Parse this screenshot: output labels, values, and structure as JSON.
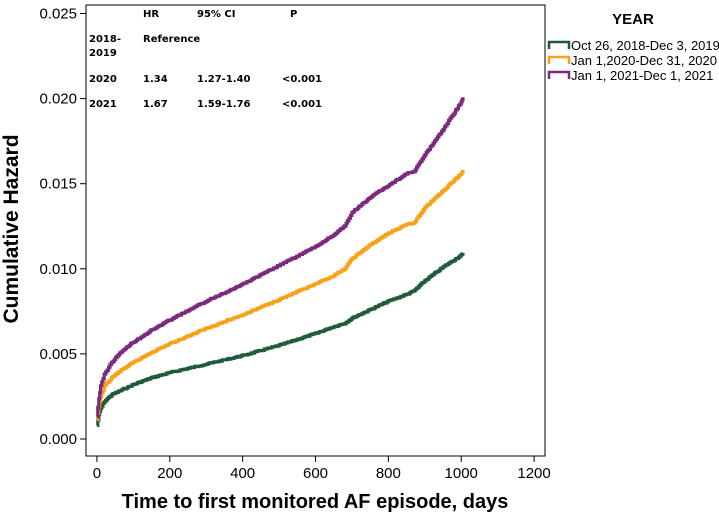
{
  "chart_data": {
    "type": "line",
    "xlabel": "Time to first monitored AF episode, days",
    "ylabel": "Cumulative Hazard",
    "xlim": [
      -30,
      1230
    ],
    "ylim": [
      -0.001,
      0.0255
    ],
    "x_ticks": [
      0,
      200,
      400,
      600,
      800,
      1000,
      1200
    ],
    "x_tick_labels": [
      "0",
      "200",
      "400",
      "600",
      "800",
      "1000",
      "1200"
    ],
    "y_ticks": [
      0.0,
      0.005,
      0.01,
      0.015,
      0.02,
      0.025
    ],
    "y_tick_labels": [
      "0.000",
      "0.005",
      "0.010",
      "0.015",
      "0.020",
      "0.025"
    ],
    "legend": {
      "title": "YEAR",
      "position": "top-right outside"
    },
    "series": [
      {
        "name": "Oct 26, 2018-Dec 3, 2019",
        "color": "#1f5a3a",
        "x": [
          0,
          5,
          10,
          20,
          40,
          70,
          100,
          150,
          200,
          300,
          400,
          500,
          600,
          650,
          680,
          700,
          750,
          800,
          850,
          870,
          900,
          950,
          1000,
          1005
        ],
        "y": [
          0.0008,
          0.0014,
          0.0018,
          0.0022,
          0.0026,
          0.0029,
          0.0032,
          0.0036,
          0.0039,
          0.0044,
          0.0049,
          0.0055,
          0.0062,
          0.0066,
          0.0068,
          0.0071,
          0.0076,
          0.0081,
          0.0085,
          0.0087,
          0.0093,
          0.0101,
          0.0108,
          0.0109
        ]
      },
      {
        "name": "Jan 1,2020-Dec 31, 2020",
        "color": "#f7a21b",
        "x": [
          0,
          5,
          10,
          20,
          40,
          70,
          100,
          150,
          200,
          300,
          400,
          500,
          600,
          650,
          680,
          700,
          750,
          800,
          850,
          870,
          900,
          950,
          1000,
          1005
        ],
        "y": [
          0.0011,
          0.0019,
          0.0025,
          0.0031,
          0.0036,
          0.0041,
          0.0045,
          0.0051,
          0.0056,
          0.0065,
          0.0073,
          0.0082,
          0.0091,
          0.0096,
          0.01,
          0.0106,
          0.0114,
          0.0121,
          0.0126,
          0.0127,
          0.0136,
          0.0146,
          0.0156,
          0.0158
        ]
      },
      {
        "name": "Jan 1, 2021-Dec 1, 2021",
        "color": "#7b2b7e",
        "x": [
          0,
          5,
          10,
          20,
          40,
          70,
          100,
          150,
          200,
          300,
          400,
          500,
          600,
          650,
          680,
          700,
          750,
          800,
          850,
          870,
          900,
          950,
          1000,
          1005
        ],
        "y": [
          0.0013,
          0.0024,
          0.0031,
          0.0038,
          0.0045,
          0.0052,
          0.0057,
          0.0064,
          0.007,
          0.0081,
          0.0091,
          0.0102,
          0.0113,
          0.012,
          0.0125,
          0.0133,
          0.0142,
          0.0149,
          0.0156,
          0.0157,
          0.0167,
          0.0182,
          0.0198,
          0.0201
        ]
      }
    ],
    "hr_table": {
      "headers": [
        "HR",
        "95% CI",
        "P"
      ],
      "rows": [
        {
          "year": [
            "2018-",
            "2019"
          ],
          "hr": "Reference",
          "ci": "",
          "p": ""
        },
        {
          "year": [
            "2020"
          ],
          "hr": "1.34",
          "ci": "1.27-1.40",
          "p": "<0.001"
        },
        {
          "year": [
            "2021"
          ],
          "hr": "1.67",
          "ci": "1.59-1.76",
          "p": "<0.001"
        }
      ]
    }
  }
}
